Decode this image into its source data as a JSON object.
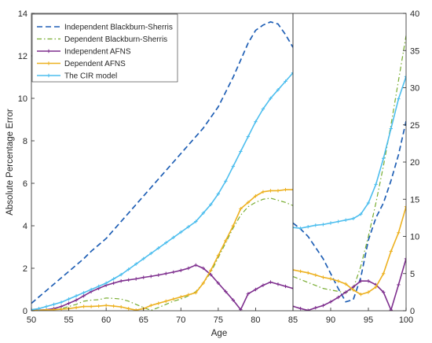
{
  "chart_data": [
    {
      "type": "line",
      "xlabel": "Age",
      "ylabel": "Absolute Percentage Error",
      "xlim": [
        50,
        85
      ],
      "ylim": [
        0,
        14
      ],
      "x_ticks": [
        "50",
        "55",
        "60",
        "65",
        "70",
        "75",
        "80",
        "85"
      ],
      "y_ticks": [
        "0",
        "2",
        "4",
        "6",
        "8",
        "10",
        "12",
        "14"
      ],
      "grid": false,
      "legend_position": "top-left",
      "series": [
        {
          "name": "Independent Blackburn-Sherris",
          "color": "#1f5fb5",
          "style": "dashed",
          "x": [
            50,
            51,
            52,
            53,
            54,
            55,
            56,
            57,
            58,
            59,
            60,
            61,
            62,
            63,
            64,
            65,
            66,
            67,
            68,
            69,
            70,
            71,
            72,
            73,
            74,
            75,
            76,
            77,
            78,
            79,
            80,
            81,
            82,
            83,
            84,
            85
          ],
          "y": [
            0.35,
            0.65,
            0.95,
            1.25,
            1.55,
            1.85,
            2.15,
            2.45,
            2.8,
            3.1,
            3.4,
            3.8,
            4.2,
            4.6,
            5.0,
            5.4,
            5.8,
            6.2,
            6.6,
            7.0,
            7.4,
            7.8,
            8.2,
            8.6,
            9.1,
            9.6,
            10.3,
            11.0,
            11.8,
            12.6,
            13.2,
            13.45,
            13.6,
            13.5,
            13.0,
            12.4
          ]
        },
        {
          "name": "Dependent Blackburn-Sherris",
          "color": "#77ac30",
          "style": "dashdot",
          "x": [
            50,
            51,
            52,
            53,
            54,
            55,
            56,
            57,
            58,
            59,
            60,
            61,
            62,
            63,
            64,
            65,
            66,
            67,
            68,
            69,
            70,
            71,
            72,
            73,
            74,
            75,
            76,
            77,
            78,
            79,
            80,
            81,
            82,
            83,
            84,
            85
          ],
          "y": [
            0.02,
            0.02,
            0.03,
            0.05,
            0.1,
            0.2,
            0.3,
            0.45,
            0.5,
            0.52,
            0.6,
            0.58,
            0.55,
            0.45,
            0.3,
            0.15,
            0.02,
            0.15,
            0.3,
            0.45,
            0.55,
            0.7,
            0.9,
            1.3,
            1.8,
            2.5,
            3.2,
            3.9,
            4.5,
            4.9,
            5.1,
            5.25,
            5.3,
            5.2,
            5.1,
            4.95
          ]
        },
        {
          "name": "Independent AFNS",
          "color": "#7e2f8e",
          "style": "solid-marker",
          "x": [
            50,
            51,
            52,
            53,
            54,
            55,
            56,
            57,
            58,
            59,
            60,
            61,
            62,
            63,
            64,
            65,
            66,
            67,
            68,
            69,
            70,
            71,
            72,
            73,
            74,
            75,
            76,
            77,
            78,
            79,
            80,
            81,
            82,
            83,
            84,
            85
          ],
          "y": [
            0.02,
            0.03,
            0.05,
            0.1,
            0.2,
            0.35,
            0.5,
            0.7,
            0.9,
            1.05,
            1.2,
            1.3,
            1.4,
            1.45,
            1.5,
            1.57,
            1.62,
            1.68,
            1.75,
            1.82,
            1.9,
            2.0,
            2.15,
            2.0,
            1.7,
            1.3,
            0.9,
            0.5,
            0.05,
            0.8,
            1.0,
            1.2,
            1.35,
            1.25,
            1.15,
            1.05
          ]
        },
        {
          "name": "Dependent AFNS",
          "color": "#edb120",
          "style": "solid-marker",
          "x": [
            50,
            51,
            52,
            53,
            54,
            55,
            56,
            57,
            58,
            59,
            60,
            61,
            62,
            63,
            64,
            65,
            66,
            67,
            68,
            69,
            70,
            71,
            72,
            73,
            74,
            75,
            76,
            77,
            78,
            79,
            80,
            81,
            82,
            83,
            84,
            85
          ],
          "y": [
            0.01,
            0.02,
            0.04,
            0.05,
            0.07,
            0.1,
            0.15,
            0.2,
            0.2,
            0.22,
            0.25,
            0.22,
            0.18,
            0.1,
            0.03,
            0.1,
            0.25,
            0.35,
            0.45,
            0.55,
            0.65,
            0.75,
            0.85,
            1.3,
            1.9,
            2.6,
            3.3,
            4.0,
            4.8,
            5.1,
            5.4,
            5.6,
            5.65,
            5.65,
            5.7,
            5.7
          ]
        },
        {
          "name": "The CIR model",
          "color": "#4dbeee",
          "style": "solid-marker",
          "x": [
            50,
            51,
            52,
            53,
            54,
            55,
            56,
            57,
            58,
            59,
            60,
            61,
            62,
            63,
            64,
            65,
            66,
            67,
            68,
            69,
            70,
            71,
            72,
            73,
            74,
            75,
            76,
            77,
            78,
            79,
            80,
            81,
            82,
            83,
            84,
            85
          ],
          "y": [
            0.05,
            0.1,
            0.2,
            0.3,
            0.4,
            0.55,
            0.7,
            0.85,
            1.0,
            1.15,
            1.3,
            1.5,
            1.7,
            1.95,
            2.2,
            2.45,
            2.7,
            2.95,
            3.2,
            3.45,
            3.7,
            3.95,
            4.2,
            4.6,
            5.0,
            5.5,
            6.1,
            6.8,
            7.5,
            8.2,
            8.9,
            9.5,
            10.0,
            10.4,
            10.8,
            11.2
          ]
        }
      ]
    },
    {
      "type": "line",
      "xlim": [
        85,
        100
      ],
      "ylim": [
        0,
        40
      ],
      "x_ticks": [
        "85",
        "90",
        "95",
        "100"
      ],
      "y_ticks": [
        "0",
        "5",
        "10",
        "15",
        "20",
        "25",
        "30",
        "35",
        "40"
      ],
      "y_axis_position": "right",
      "grid": false,
      "series": [
        {
          "name": "Independent Blackburn-Sherris",
          "color": "#1f5fb5",
          "style": "dashed",
          "x": [
            85,
            86,
            87,
            88,
            89,
            90,
            91,
            92,
            93,
            94,
            95,
            96,
            97,
            98,
            99,
            100
          ],
          "y": [
            11.8,
            11.0,
            10.0,
            8.5,
            7.0,
            5.0,
            3.0,
            1.2,
            1.5,
            4.5,
            9.5,
            12.5,
            14.5,
            17.5,
            21.0,
            25.5
          ]
        },
        {
          "name": "Dependent Blackburn-Sherris",
          "color": "#77ac30",
          "style": "dashdot",
          "x": [
            85,
            86,
            87,
            88,
            89,
            90,
            91,
            92,
            93,
            94,
            95,
            96,
            97,
            98,
            99,
            100
          ],
          "y": [
            4.6,
            4.2,
            3.8,
            3.4,
            3.0,
            2.8,
            2.6,
            2.4,
            3.0,
            6.0,
            10.0,
            14.5,
            19.5,
            25.0,
            31.0,
            37.0
          ]
        },
        {
          "name": "Independent AFNS",
          "color": "#7e2f8e",
          "style": "solid-marker",
          "x": [
            85,
            86,
            87,
            88,
            89,
            90,
            91,
            92,
            93,
            94,
            95,
            96,
            97,
            98,
            99,
            100
          ],
          "y": [
            0.6,
            0.3,
            0.05,
            0.4,
            0.7,
            1.2,
            1.8,
            2.5,
            3.2,
            4.0,
            4.0,
            3.5,
            2.5,
            0.1,
            3.5,
            7.0
          ]
        },
        {
          "name": "Dependent AFNS",
          "color": "#edb120",
          "style": "solid-marker",
          "x": [
            85,
            86,
            87,
            88,
            89,
            90,
            91,
            92,
            93,
            94,
            95,
            96,
            97,
            98,
            99,
            100
          ],
          "y": [
            5.5,
            5.3,
            5.1,
            4.8,
            4.5,
            4.3,
            4.0,
            3.6,
            2.8,
            2.2,
            2.5,
            3.2,
            5.0,
            8.0,
            10.5,
            14.0
          ]
        },
        {
          "name": "The CIR model",
          "color": "#4dbeee",
          "style": "solid-marker",
          "x": [
            85,
            86,
            87,
            88,
            89,
            90,
            91,
            92,
            93,
            94,
            95,
            96,
            97,
            98,
            99,
            100
          ],
          "y": [
            11.2,
            11.1,
            11.3,
            11.5,
            11.6,
            11.8,
            12.0,
            12.2,
            12.4,
            13.0,
            14.5,
            17.0,
            20.5,
            24.5,
            28.5,
            31.5
          ]
        }
      ]
    }
  ]
}
